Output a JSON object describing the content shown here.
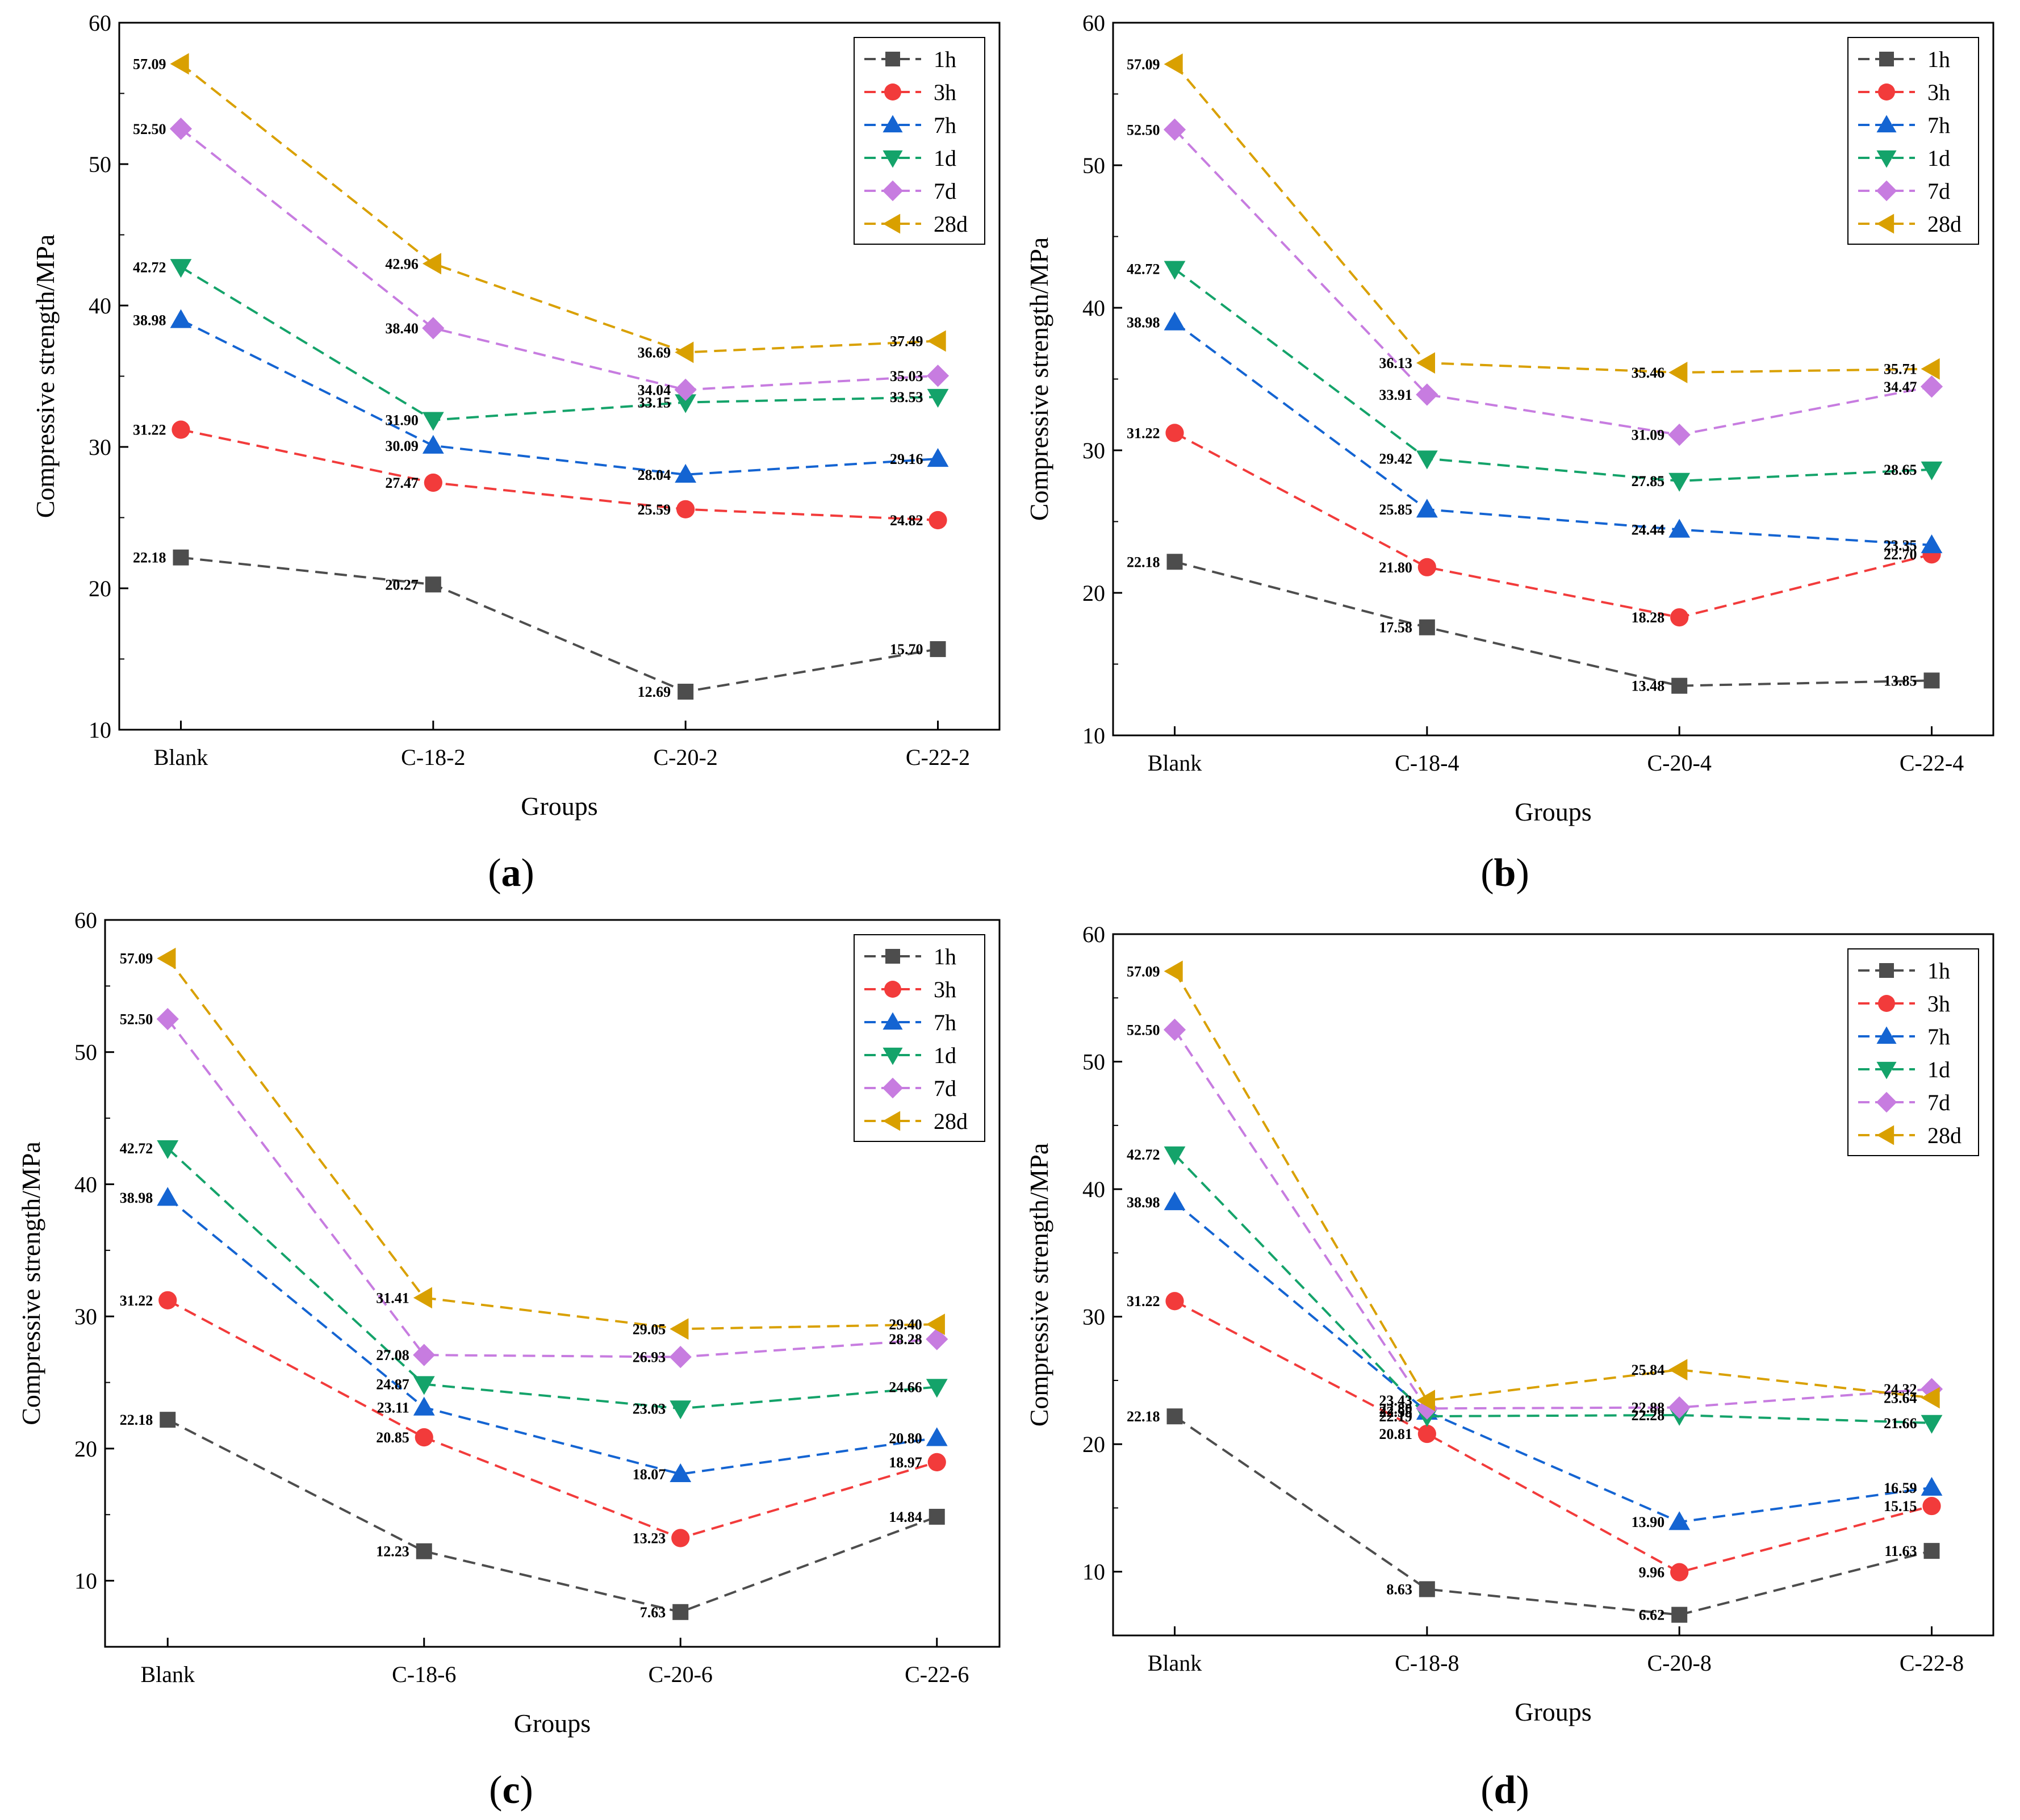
{
  "series_styles": [
    {
      "name": "1h",
      "color": "#4d4d4d",
      "marker": "square"
    },
    {
      "name": "3h",
      "color": "#f23b3b",
      "marker": "circle"
    },
    {
      "name": "7h",
      "color": "#1464d2",
      "marker": "triangle-up"
    },
    {
      "name": "1d",
      "color": "#14a36a",
      "marker": "triangle-down"
    },
    {
      "name": "7d",
      "color": "#c77ce0",
      "marker": "diamond"
    },
    {
      "name": "28d",
      "color": "#d9a000",
      "marker": "triangle-left"
    }
  ],
  "chart_data": [
    {
      "type": "line",
      "panel": "a",
      "xlabel": "Groups",
      "ylabel": "Compressive strength/MPa",
      "ylim": [
        10,
        60
      ],
      "yticks": [
        10,
        20,
        30,
        40,
        50,
        60
      ],
      "categories": [
        "Blank",
        "C-18-2",
        "C-20-2",
        "C-22-2"
      ],
      "legend_position": "top-right",
      "series": [
        {
          "name": "1h",
          "values": [
            22.18,
            20.27,
            12.69,
            15.7
          ],
          "labels": [
            "22.18",
            "20.27",
            "12.69",
            "15.70"
          ]
        },
        {
          "name": "3h",
          "values": [
            31.22,
            27.47,
            25.59,
            24.82
          ],
          "labels": [
            "31.22",
            "27.47",
            "25.59",
            "24.82"
          ]
        },
        {
          "name": "7h",
          "values": [
            38.98,
            30.09,
            28.04,
            29.16
          ],
          "labels": [
            "38.98",
            "30.09",
            "28.04",
            "29.16"
          ]
        },
        {
          "name": "1d",
          "values": [
            42.72,
            31.9,
            33.15,
            33.53
          ],
          "labels": [
            "42.72",
            "31.90",
            "33.15",
            "33.53"
          ]
        },
        {
          "name": "7d",
          "values": [
            52.5,
            38.4,
            34.04,
            35.03
          ],
          "labels": [
            "52.50",
            "38.40",
            "34.04",
            "35.03"
          ]
        },
        {
          "name": "28d",
          "values": [
            57.09,
            42.96,
            36.69,
            37.49
          ],
          "labels": [
            "57.09",
            "42.96",
            "36.69",
            "37.49"
          ]
        }
      ]
    },
    {
      "type": "line",
      "panel": "b",
      "xlabel": "Groups",
      "ylabel": "Compressive strength/MPa",
      "ylim": [
        10,
        60
      ],
      "yticks": [
        10,
        20,
        30,
        40,
        50,
        60
      ],
      "categories": [
        "Blank",
        "C-18-4",
        "C-20-4",
        "C-22-4"
      ],
      "legend_position": "top-right",
      "series": [
        {
          "name": "1h",
          "values": [
            22.18,
            17.58,
            13.48,
            13.85
          ],
          "labels": [
            "22.18",
            "17.58",
            "13.48",
            "13.85"
          ]
        },
        {
          "name": "3h",
          "values": [
            31.22,
            21.8,
            18.28,
            22.7
          ],
          "labels": [
            "31.22",
            "21.80",
            "18.28",
            "22.70"
          ]
        },
        {
          "name": "7h",
          "values": [
            38.98,
            25.85,
            24.44,
            23.35
          ],
          "labels": [
            "38.98",
            "25.85",
            "24.44",
            "23.35"
          ]
        },
        {
          "name": "1d",
          "values": [
            42.72,
            29.42,
            27.85,
            28.65
          ],
          "labels": [
            "42.72",
            "29.42",
            "27.85",
            "28.65"
          ]
        },
        {
          "name": "7d",
          "values": [
            52.5,
            33.91,
            31.09,
            34.47
          ],
          "labels": [
            "52.50",
            "33.91",
            "31.09",
            "34.47"
          ]
        },
        {
          "name": "28d",
          "values": [
            57.09,
            36.13,
            35.46,
            35.71
          ],
          "labels": [
            "57.09",
            "36.13",
            "35.46",
            "35.71"
          ]
        }
      ]
    },
    {
      "type": "line",
      "panel": "c",
      "xlabel": "Groups",
      "ylabel": "Compressive strength/MPa",
      "ylim": [
        5,
        60
      ],
      "yticks": [
        10,
        20,
        30,
        40,
        50,
        60
      ],
      "categories": [
        "Blank",
        "C-18-6",
        "C-20-6",
        "C-22-6"
      ],
      "legend_position": "top-right",
      "series": [
        {
          "name": "1h",
          "values": [
            22.18,
            12.23,
            7.63,
            14.84
          ],
          "labels": [
            "22.18",
            "12.23",
            "7.63",
            "14.84"
          ]
        },
        {
          "name": "3h",
          "values": [
            31.22,
            20.85,
            13.23,
            18.97
          ],
          "labels": [
            "31.22",
            "20.85",
            "13.23",
            "18.97"
          ]
        },
        {
          "name": "7h",
          "values": [
            38.98,
            23.11,
            18.07,
            20.8
          ],
          "labels": [
            "38.98",
            "23.11",
            "18.07",
            "20.80"
          ]
        },
        {
          "name": "1d",
          "values": [
            42.72,
            24.87,
            23.03,
            24.66
          ],
          "labels": [
            "42.72",
            "24.87",
            "23.03",
            "24.66"
          ]
        },
        {
          "name": "7d",
          "values": [
            52.5,
            27.08,
            26.93,
            28.28
          ],
          "labels": [
            "52.50",
            "27.08",
            "26.93",
            "28.28"
          ]
        },
        {
          "name": "28d",
          "values": [
            57.09,
            31.41,
            29.05,
            29.4
          ],
          "labels": [
            "57.09",
            "31.41",
            "29.05",
            "29.40"
          ]
        }
      ]
    },
    {
      "type": "line",
      "panel": "d",
      "xlabel": "Groups",
      "ylabel": "Compressive strength/MPa",
      "ylim": [
        5,
        60
      ],
      "yticks": [
        10,
        20,
        30,
        40,
        50,
        60
      ],
      "categories": [
        "Blank",
        "C-18-8",
        "C-20-8",
        "C-22-8"
      ],
      "legend_position": "top-right",
      "series": [
        {
          "name": "1h",
          "values": [
            22.18,
            8.63,
            6.62,
            11.63
          ],
          "labels": [
            "22.18",
            "8.63",
            "6.62",
            "11.63"
          ]
        },
        {
          "name": "3h",
          "values": [
            31.22,
            20.81,
            9.96,
            15.15
          ],
          "labels": [
            "31.22",
            "20.81",
            "9.96",
            "15.15"
          ]
        },
        {
          "name": "7h",
          "values": [
            38.98,
            22.55,
            13.9,
            16.59
          ],
          "labels": [
            "38.98",
            "22.55",
            "13.90",
            "16.59"
          ]
        },
        {
          "name": "1d",
          "values": [
            42.72,
            22.19,
            22.28,
            21.66
          ],
          "labels": [
            "42.72",
            "22.19",
            "22.28",
            "21.66"
          ]
        },
        {
          "name": "7d",
          "values": [
            52.5,
            22.8,
            22.88,
            24.32
          ],
          "labels": [
            "52.50",
            "22.80",
            "22.88",
            "24.32"
          ]
        },
        {
          "name": "28d",
          "values": [
            57.09,
            23.43,
            25.84,
            23.64
          ],
          "labels": [
            "57.09",
            "23.43",
            "25.84",
            "23.64"
          ]
        }
      ]
    }
  ]
}
